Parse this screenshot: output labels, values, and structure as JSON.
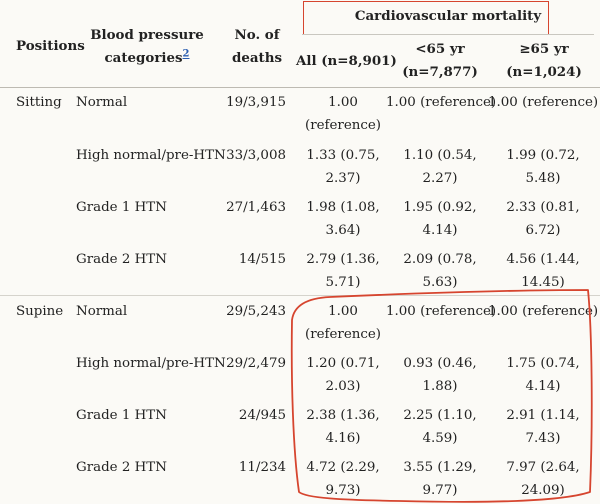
{
  "header": {
    "positions": "Positions",
    "bp_categories_line1": "Blood pressure",
    "bp_categories_line2": "categories",
    "bp_categories_ref": "2",
    "deaths_line1": "No. of",
    "deaths_line2": "deaths",
    "cv_mortality": "Cardiovascular mortality",
    "all_label": "All (n=8,901)",
    "under65_line1": "<65 yr",
    "under65_line2": "(n=7,877)",
    "over65_line1": "≥65 yr",
    "over65_line2": "(n=1,024)"
  },
  "sections": [
    {
      "position": "Sitting",
      "rows": [
        {
          "category": "Normal",
          "deaths": "19/3,915",
          "all": [
            "1.00",
            "(reference)"
          ],
          "under65": [
            "1.00 (reference)"
          ],
          "over65": [
            "1.00 (reference)"
          ]
        },
        {
          "category": "High normal/pre-HTN",
          "deaths": "33/3,008",
          "all": [
            "1.33 (0.75,",
            "2.37)"
          ],
          "under65": [
            "1.10 (0.54,",
            "2.27)"
          ],
          "over65": [
            "1.99 (0.72,",
            "5.48)"
          ]
        },
        {
          "category": "Grade 1 HTN",
          "deaths": "27/1,463",
          "all": [
            "1.98 (1.08,",
            "3.64)"
          ],
          "under65": [
            "1.95 (0.92,",
            "4.14)"
          ],
          "over65": [
            "2.33 (0.81,",
            "6.72)"
          ]
        },
        {
          "category": "Grade 2 HTN",
          "deaths": "14/515",
          "all": [
            "2.79 (1.36,",
            "5.71)"
          ],
          "under65": [
            "2.09 (0.78,",
            "5.63)"
          ],
          "over65": [
            "4.56 (1.44,",
            "14.45)"
          ]
        }
      ]
    },
    {
      "position": "Supine",
      "rows": [
        {
          "category": "Normal",
          "deaths": "29/5,243",
          "all": [
            "1.00",
            "(reference)"
          ],
          "under65": [
            "1.00 (reference)"
          ],
          "over65": [
            "1.00 (reference)"
          ]
        },
        {
          "category": "High normal/pre-HTN",
          "deaths": "29/2,479",
          "all": [
            "1.20 (0.71,",
            "2.03)"
          ],
          "under65": [
            "0.93 (0.46,",
            "1.88)"
          ],
          "over65": [
            "1.75 (0.74,",
            "4.14)"
          ]
        },
        {
          "category": "Grade 1 HTN",
          "deaths": "24/945",
          "all": [
            "2.38 (1.36,",
            "4.16)"
          ],
          "under65": [
            "2.25 (1.10,",
            "4.59)"
          ],
          "over65": [
            "2.91 (1.14,",
            "7.43)"
          ]
        },
        {
          "category": "Grade 2 HTN",
          "deaths": "11/234",
          "all": [
            "4.72 (2.29,",
            "9.73)"
          ],
          "under65": [
            "3.55 (1.29,",
            "9.77)"
          ],
          "over65": [
            "7.97 (2.64,",
            "24.09)"
          ]
        }
      ]
    }
  ],
  "annotation_colors": {
    "box": "#d6452f",
    "loop": "#d6452f"
  }
}
